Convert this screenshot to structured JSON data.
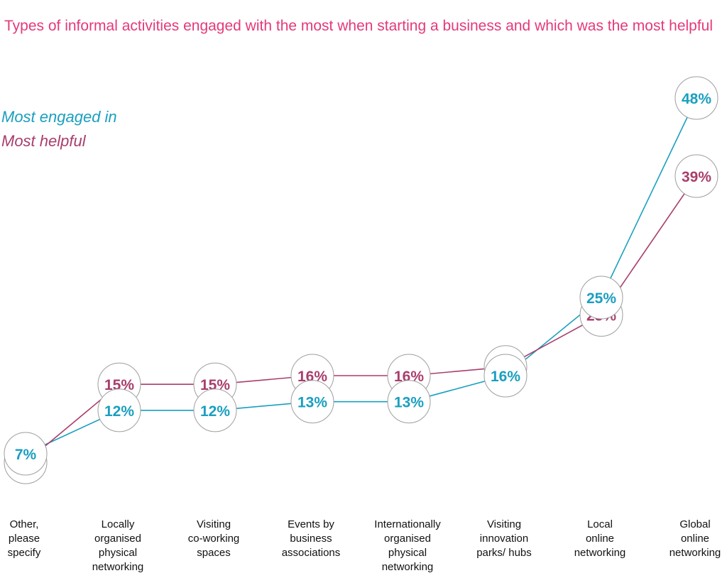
{
  "chart_data": {
    "type": "line",
    "title": "Types of informal activities engaged with the most when starting a business and which was the most helpful",
    "categories": [
      "Other, please specify",
      "Locally organised physical networking",
      "Visiting co-working spaces",
      "Events by business associations",
      "Internationally organised physical networking",
      "Visiting innovation parks/ hubs",
      "Local online networking",
      "Global online networking"
    ],
    "category_lines": [
      [
        "Other,",
        "please",
        "specify"
      ],
      [
        "Locally",
        "organised",
        "physical",
        "networking"
      ],
      [
        "Visiting",
        "co-working",
        "spaces"
      ],
      [
        "Events by",
        "business",
        "associations"
      ],
      [
        "Internationally",
        "organised",
        "physical",
        "networking"
      ],
      [
        "Visiting",
        "innovation",
        "parks/ hubs"
      ],
      [
        "Local",
        "online",
        "networking"
      ],
      [
        "Global",
        "online",
        "networking"
      ]
    ],
    "series": [
      {
        "name": "Most engaged in",
        "values": [
          7,
          12,
          12,
          13,
          13,
          16,
          25,
          48
        ],
        "labels": [
          "7%",
          "12%",
          "12%",
          "13%",
          "13%",
          "16%",
          "25%",
          "48%"
        ],
        "color": "#1a9fc0"
      },
      {
        "name": "Most helpful",
        "values": [
          6,
          15,
          15,
          16,
          16,
          17,
          23,
          39
        ],
        "labels": [
          "6%",
          "15%",
          "15%",
          "16%",
          "16%",
          "17%",
          "23%",
          "39%"
        ],
        "color": "#a83e6c"
      }
    ],
    "ylim": [
      0,
      50
    ],
    "grid": false,
    "legend_placement": "top-left"
  }
}
